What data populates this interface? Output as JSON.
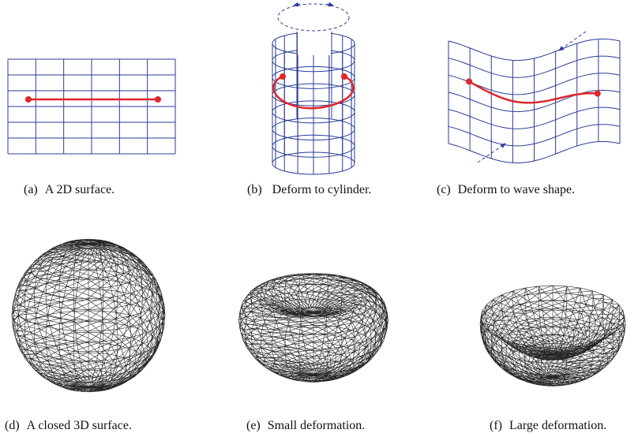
{
  "panels": [
    {
      "label": "(a)",
      "text": "A 2D surface."
    },
    {
      "label": "(b)",
      "text": "Deform to cylinder."
    },
    {
      "label": "(c)",
      "text": "Deform to wave shape."
    },
    {
      "label": "(d)",
      "text": "A closed 3D surface."
    },
    {
      "label": "(e)",
      "text": "Small deformation."
    },
    {
      "label": "(f)",
      "text": "Large deformation."
    }
  ]
}
